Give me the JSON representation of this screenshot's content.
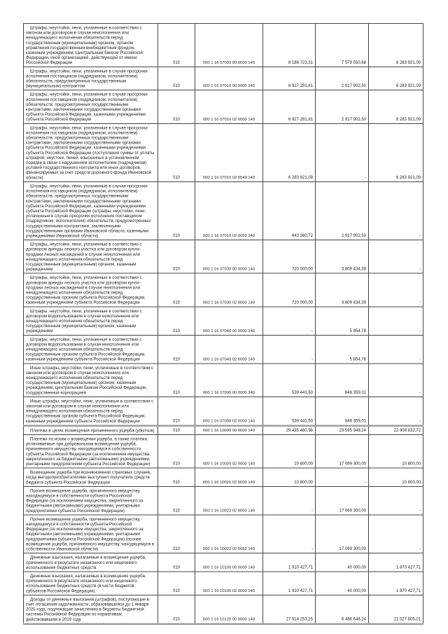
{
  "document": {
    "kind": "budget-report-table-continuation",
    "text_color": "#1f1f1f",
    "grid_color": "#454545",
    "section_divider_color": "#9e9e9e",
    "background": "#ffffff"
  },
  "table": {
    "rows": [
      {
        "name": "Штрафы, неустойки, пени, уплаченные в соответствии с законом или договором в случае неисполнения или ненадлежащего исполнения обязательств перед государственным (муниципальным) органом, органом управления государственным внебюджетным фондом, казенным учреждением, Центральным банком Российской Федерации, иной организацией, действующей от имени Российской Федерации",
        "code": "010",
        "kbk": "000 1 16 07000 00 0000 140",
        "v1": "8 186 723,31",
        "v2": "7 579 550,68",
        "v3": "6 283 921,09",
        "section": false
      },
      {
        "name": "Штрафы, неустойки, пени, уплаченные в случае просрочки исполнения поставщиком (подрядчиком, исполнителем) обязательств, предусмотренных государственным (муниципальным) контрактом",
        "code": "010",
        "kbk": "000 1 16 07010 00 0000 140",
        "v1": "6 927 281,81",
        "v2": "2 917 902,50",
        "v3": "6 283 921,09",
        "section": false
      },
      {
        "name": "Штрафы, неустойки, пени, уплаченные в случае просрочки исполнения поставщиком (подрядчиком, исполнителем) обязательств, предусмотренных государственными контрактами, заключенными государственными органами субъекта Российской Федерации, казенными учреждениями субъекта Российской Федерации",
        "code": "010",
        "kbk": "000 1 16 07010 02 0000 140",
        "v1": "6 927 281,81",
        "v2": "2 917 902,50",
        "v3": "6 283 921,09",
        "section": false
      },
      {
        "name": "Штрафы, неустойки, пени, уплаченные в случае просрочки исполнения поставщиком (подрядчиком, исполнителем) обязательств, предусмотренных государственными контрактами, заключенными государственными органами субъекта Российской Федерации, казенными учреждениями субъекта Российской Федерации (поступления суммы от уплаты штрафов, неустоек, пеней, взысканных в установленном порядке в связи с нарушением исполнителем (подрядчиком) условий государственного контракта или иных договоров, финансируемых за счет средств дорожного фонда Ивановской области)",
        "code": "010",
        "kbk": "000 1 16 07010 02 0049 140",
        "v1": "6 283 921,09",
        "v2": "-",
        "v3": "6 283 921,09",
        "section": false
      },
      {
        "name": "Штрафы, неустойки, пени, уплаченные в случае просрочки исполнения поставщиком (подрядчиком, исполнителем) обязательств, предусмотренных государственными контрактами, заключенными государственными органами субъекта Российской Федерации, казенными учреждениями субъекта Российской Федерации (штрафы, неустойки, пени, уплаченные в случае просрочки исполнения поставщиком (подрядчиком, исполнителем) обязательств, предусмотренных государственными контрактами, заключенными государственными органами Ивановской области, казенными учреждениями Ивановской области)",
        "code": "010",
        "kbk": "000 1 16 07010 02 0050 140",
        "v1": "643 360,72",
        "v2": "2 917 902,50",
        "v3": "-",
        "section": false
      },
      {
        "name": "Штрафы, неустойки, пени, уплаченные в соответствии с договором аренды лесного участка или договором купли-продажи лесных насаждений в случае неисполнения или ненадлежащего исполнения обязательств перед государственным (муниципальным) органом, казенным учреждением",
        "code": "010",
        "kbk": "000 1 16 07030 00 0000 140",
        "v1": "720 000,00",
        "v2": "3 809 434,39",
        "v3": "-",
        "section": false
      },
      {
        "name": "Штрафы, неустойки, пени, уплаченные в соответствии с договором аренды лесного участка или договором купли-продажи лесных насаждений в случае неисполнения или ненадлежащего исполнения обязательств перед государственным органом субъекта Российской Федерации, казенным учреждением субъекта Российской Федерации",
        "code": "010",
        "kbk": "000 1 16 07030 02 0000 140",
        "v1": "720 000,00",
        "v2": "3 809 434,39",
        "v3": "-",
        "section": false
      },
      {
        "name": "Штрафы, неустойки, пени, уплаченные в соответствии с договором водопользования в случае неисполнения или ненадлежащего исполнения обязательств перед государственным (муниципальным) органом, казенным учреждением",
        "code": "010",
        "kbk": "000 1 16 07040 00 0000 140",
        "v1": "-",
        "v2": "5 854,78",
        "v3": "-",
        "section": false
      },
      {
        "name": "Штрафы, неустойки, пени, уплаченные в соответствии с договором водопользования в случае неисполнения или ненадлежащего исполнения обязательств перед государственным органом субъекта Российской Федерации, казенным учреждением субъекта Российской Федерации",
        "code": "010",
        "kbk": "000 1 16 07040 02 0000 140",
        "v1": "-",
        "v2": "5 854,78",
        "v3": "-",
        "section": false
      },
      {
        "name": "Иные штрафы, неустойки, пени, уплаченные в соответствии с законом или договором в случае неисполнения или ненадлежащего исполнения обязательств перед государственным (муниципальным) органом, казенным учреждением, Центральным банком Российской Федерации, государственной корпорацией",
        "code": "010",
        "kbk": "000 1 16 07090 00 0000 140",
        "v1": "539 441,50",
        "v2": "846 359,01",
        "v3": "-",
        "section": false
      },
      {
        "name": "Иные штрафы, неустойки, пени, уплаченные в соответствии с законом или договором в случае неисполнения или ненадлежащего исполнения обязательств перед государственным органом субъекта Российской Федерации, казенным учреждением субъекта Российской Федерации",
        "code": "010",
        "kbk": "000 1 16 07090 02 0000 140",
        "v1": "539 441,50",
        "v2": "846 359,01",
        "v3": "-",
        "section": false
      },
      {
        "name": "Платежи в целях возмещения причиненного ущерба (убытков)",
        "code": "010",
        "kbk": "000 1 16 10000 00 0000 140",
        "v1": "29 435 480,96",
        "v2": "23 595 948,24",
        "v3": "22 908 832,72",
        "section": true
      },
      {
        "name": "Платежи по искам о возмещении ущерба, а также платежи, уплачиваемые при добровольном возмещении ущерба, причиненного имуществу, находящемуся в собственности субъекта Российской Федерации (за исключением имущества, закрепленного за бюджетными (автономными) учреждениями, унитарными предприятиями субъекта Российской Федерации)",
        "code": "010",
        "kbk": "000 1 16 10020 02 0000 140",
        "v1": "10 800,00",
        "v2": "17 069 300,00",
        "v3": "10 800,00",
        "section": false
      },
      {
        "name": "Возмещение ущерба при возникновении страховых случаев, когда выгодоприобретателями выступают получатели средств бюджета субъекта Российской Федерации",
        "code": "010",
        "kbk": "000 1 16 10021 02 0000 140",
        "v1": "10 800,00",
        "v2": "-",
        "v3": "10 800,00",
        "section": false
      },
      {
        "name": "Прочее возмещение ущерба, причиненного имуществу, находящемуся в собственности субъекта Российской Федерации (за исключением имущества, закрепленного за бюджетными (автономными) учреждениями, унитарными предприятиями субъекта Российской Федерации)",
        "code": "010",
        "kbk": "000 1 16 10022 02 0000 140",
        "v1": "-",
        "v2": "17 069 300,00",
        "v3": "-",
        "section": false
      },
      {
        "name": "Прочее возмещение ущерба, причиненного имуществу, находящемуся в собственности субъекта Российской Федерации (за исключением имущества, закрепленного за бюджетными (автономными) учреждениями, унитарными предприятиями субъекта Российской Федерации) (прочее возмещение ущерба, причиненного имуществу, находящемуся в собственности Ивановской области)",
        "code": "010",
        "kbk": "000 1 16 10022 02 0052 140",
        "v1": "-",
        "v2": "17 069 300,00",
        "v3": "-",
        "section": false
      },
      {
        "name": "Денежные взыскания, налагаемые в возмещение ущерба, причиненного в результате незаконного или нецелевого использования бюджетных средств",
        "code": "010",
        "kbk": "000 1 16 10100 00 0000 140",
        "v1": "1 910 427,71",
        "v2": "40 000,00",
        "v3": "1 870 427,71",
        "section": false
      },
      {
        "name": "Денежные взыскания, налагаемые в возмещение ущерба, причиненного в результате незаконного или нецелевого использования бюджетных средств (в части бюджетов субъектов Российской Федерации)",
        "code": "010",
        "kbk": "000 1 16 10100 02 0000 140",
        "v1": "1 910 427,71",
        "v2": "40 000,00",
        "v3": "1 870 427,71",
        "section": false
      },
      {
        "name": "Доходы от денежных взысканий (штрафов), поступающие в счет погашения задолженности, образовавшейся до 1 января 2020 года, подлежащие зачислению в бюджеты бюджетной системы Российской Федерации по нормативам, действовавшим в 2019 году",
        "code": "010",
        "kbk": "000 1 16 10120 00 0000 140",
        "v1": "27 514 253,25",
        "v2": "6 486 648,24",
        "v3": "21 027 605,01",
        "section": false
      }
    ]
  }
}
